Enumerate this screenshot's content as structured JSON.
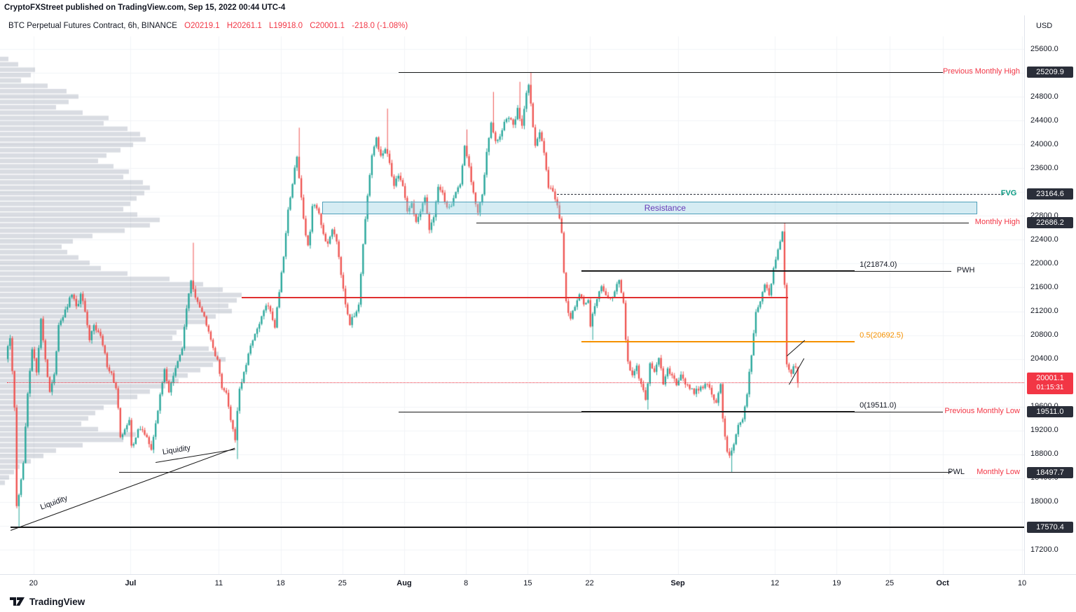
{
  "attribution": "CryptoFXStreet published on TradingView.com, Sep 15, 2022 00:44 UTC-4",
  "header": {
    "symbol": "BTC Perpetual Futures Contract, 6h, BINANCE",
    "ohlc": [
      {
        "k": "O",
        "v": "20219.1"
      },
      {
        "k": "H",
        "v": "20261.1"
      },
      {
        "k": "L",
        "v": "19918.0"
      },
      {
        "k": "C",
        "v": "20001.1"
      }
    ],
    "change": "-218.0 (-1.08%)",
    "change_color": "#f23645"
  },
  "axis": {
    "currency": "USD",
    "price_ticks": [
      "25600.0",
      "25200.0",
      "24800.0",
      "24400.0",
      "24000.0",
      "23600.0",
      "23200.0",
      "22800.0",
      "22400.0",
      "22000.0",
      "21600.0",
      "21200.0",
      "20800.0",
      "20400.0",
      "20000.0",
      "19600.0",
      "19200.0",
      "18800.0",
      "18400.0",
      "18000.0",
      "17600.0",
      "17200.0"
    ],
    "time_ticks": [
      {
        "t": "20",
        "d": 3
      },
      {
        "t": "Jul",
        "d": 14,
        "m": true
      },
      {
        "t": "11",
        "d": 24
      },
      {
        "t": "18",
        "d": 31
      },
      {
        "t": "25",
        "d": 38
      },
      {
        "t": "Aug",
        "d": 45,
        "m": true
      },
      {
        "t": "8",
        "d": 52
      },
      {
        "t": "15",
        "d": 59
      },
      {
        "t": "22",
        "d": 66
      },
      {
        "t": "Sep",
        "d": 76,
        "m": true
      },
      {
        "t": "12",
        "d": 87
      },
      {
        "t": "19",
        "d": 94
      },
      {
        "t": "25",
        "d": 100
      },
      {
        "t": "Oct",
        "d": 106,
        "m": true
      },
      {
        "t": "10",
        "d": 115
      }
    ]
  },
  "footer": {
    "brand": "TradingView"
  },
  "chart_data": {
    "type": "candlestick",
    "title": "BTC Perpetual Futures Contract 6h (BINANCE)",
    "ylim": [
      17200,
      25600
    ],
    "current": {
      "open": 20219.1,
      "high": 20261.1,
      "low": 19918.0,
      "close": 20001.1,
      "change": -218.0,
      "change_pct": -1.08,
      "countdown": "01:15:31"
    },
    "colors": {
      "up": "#26a69a",
      "down": "#ef5350",
      "accent_red": "#f23645",
      "accent_green": "#089981",
      "orange": "#f59100",
      "purple": "#673ab7",
      "badge_bg": "#2a2e39"
    },
    "price_path": [
      [
        0,
        20400
      ],
      [
        0.5,
        20750
      ],
      [
        1,
        19600
      ],
      [
        1.25,
        17950
      ],
      [
        1.6,
        18150
      ],
      [
        2,
        18650
      ],
      [
        2.5,
        19800
      ],
      [
        3,
        20550
      ],
      [
        3.5,
        20200
      ],
      [
        4,
        21050
      ],
      [
        4.5,
        20400
      ],
      [
        5,
        19850
      ],
      [
        5.5,
        20100
      ],
      [
        6,
        21000
      ],
      [
        6.8,
        21200
      ],
      [
        7.5,
        21500
      ],
      [
        8,
        21250
      ],
      [
        8.6,
        21500
      ],
      [
        9,
        21150
      ],
      [
        9.5,
        20700
      ],
      [
        10,
        21000
      ],
      [
        10.8,
        20750
      ],
      [
        11.5,
        20300
      ],
      [
        12,
        20150
      ],
      [
        12.6,
        19850
      ],
      [
        13,
        19050
      ],
      [
        13.5,
        19250
      ],
      [
        14,
        19350
      ],
      [
        14.3,
        18850
      ],
      [
        15,
        19250
      ],
      [
        16,
        19100
      ],
      [
        16.5,
        18850
      ],
      [
        17,
        19350
      ],
      [
        17.6,
        19850
      ],
      [
        18,
        20250
      ],
      [
        18.5,
        19850
      ],
      [
        19,
        20100
      ],
      [
        19.6,
        20400
      ],
      [
        20,
        20600
      ],
      [
        20.5,
        21250
      ],
      [
        21,
        21700
      ],
      [
        21.4,
        21500
      ],
      [
        22,
        21300
      ],
      [
        22.5,
        21100
      ],
      [
        23,
        20900
      ],
      [
        23.5,
        20600
      ],
      [
        24,
        20350
      ],
      [
        24.5,
        19950
      ],
      [
        25,
        19800
      ],
      [
        25.5,
        19400
      ],
      [
        26,
        19050
      ],
      [
        26.4,
        19850
      ],
      [
        27,
        20150
      ],
      [
        27.5,
        20450
      ],
      [
        28,
        20750
      ],
      [
        28.6,
        20900
      ],
      [
        29,
        21100
      ],
      [
        29.5,
        21300
      ],
      [
        30,
        21200
      ],
      [
        30.5,
        20950
      ],
      [
        31,
        21550
      ],
      [
        31.5,
        22150
      ],
      [
        32,
        22900
      ],
      [
        32.5,
        23350
      ],
      [
        33,
        23800
      ],
      [
        33.4,
        23200
      ],
      [
        34,
        22500
      ],
      [
        34.3,
        22250
      ],
      [
        34.8,
        23050
      ],
      [
        35.5,
        22800
      ],
      [
        36,
        22500
      ],
      [
        36.5,
        22300
      ],
      [
        37,
        22600
      ],
      [
        37.5,
        22400
      ],
      [
        38,
        21850
      ],
      [
        38.5,
        21350
      ],
      [
        39,
        21000
      ],
      [
        39.6,
        21150
      ],
      [
        40,
        21350
      ],
      [
        40.5,
        22350
      ],
      [
        41,
        23100
      ],
      [
        41.5,
        23800
      ],
      [
        42,
        24100
      ],
      [
        42.4,
        23800
      ],
      [
        43,
        23900
      ],
      [
        43.5,
        23700
      ],
      [
        44,
        23300
      ],
      [
        44.5,
        23500
      ],
      [
        45,
        23300
      ],
      [
        45.5,
        22900
      ],
      [
        46,
        23000
      ],
      [
        46.5,
        22700
      ],
      [
        47,
        22850
      ],
      [
        47.5,
        23100
      ],
      [
        48,
        22600
      ],
      [
        48.5,
        22800
      ],
      [
        49,
        23300
      ],
      [
        49.5,
        23150
      ],
      [
        50,
        22950
      ],
      [
        50.5,
        23000
      ],
      [
        51,
        23200
      ],
      [
        51.5,
        23350
      ],
      [
        52,
        23950
      ],
      [
        52.4,
        23700
      ],
      [
        53,
        23150
      ],
      [
        53.5,
        22850
      ],
      [
        54,
        23150
      ],
      [
        54.5,
        23900
      ],
      [
        55,
        24400
      ],
      [
        55.4,
        24050
      ],
      [
        56,
        24100
      ],
      [
        56.5,
        24400
      ],
      [
        57,
        24450
      ],
      [
        57.5,
        24300
      ],
      [
        58,
        24600
      ],
      [
        58.5,
        24300
      ],
      [
        59,
        24900
      ],
      [
        59.3,
        25050
      ],
      [
        59.8,
        24200
      ],
      [
        60,
        23950
      ],
      [
        60.5,
        24200
      ],
      [
        61,
        23900
      ],
      [
        61.5,
        23300
      ],
      [
        62,
        23200
      ],
      [
        62.5,
        23000
      ],
      [
        63,
        22550
      ],
      [
        63.3,
        21700
      ],
      [
        63.6,
        21150
      ],
      [
        64,
        21100
      ],
      [
        64.5,
        21300
      ],
      [
        65,
        21500
      ],
      [
        65.5,
        21300
      ],
      [
        66,
        21400
      ],
      [
        66.3,
        20900
      ],
      [
        66.6,
        21250
      ],
      [
        67,
        21400
      ],
      [
        67.5,
        21600
      ],
      [
        68,
        21500
      ],
      [
        68.5,
        21400
      ],
      [
        69,
        21550
      ],
      [
        69.5,
        21750
      ],
      [
        70,
        21300
      ],
      [
        70.4,
        20400
      ],
      [
        71,
        20100
      ],
      [
        71.5,
        20250
      ],
      [
        72,
        19950
      ],
      [
        72.5,
        19750
      ],
      [
        73,
        20300
      ],
      [
        73.5,
        20200
      ],
      [
        74,
        20400
      ],
      [
        74.5,
        20000
      ],
      [
        75,
        20200
      ],
      [
        75.5,
        20100
      ],
      [
        76,
        20000
      ],
      [
        76.5,
        20150
      ],
      [
        77,
        20000
      ],
      [
        77.5,
        19900
      ],
      [
        78,
        19850
      ],
      [
        78.5,
        19900
      ],
      [
        79,
        19950
      ],
      [
        79.5,
        20000
      ],
      [
        80,
        19800
      ],
      [
        80.5,
        19650
      ],
      [
        81,
        19950
      ],
      [
        81.3,
        19300
      ],
      [
        81.7,
        18900
      ],
      [
        82,
        18750
      ],
      [
        82.5,
        19000
      ],
      [
        83,
        19300
      ],
      [
        83.5,
        19350
      ],
      [
        84,
        19800
      ],
      [
        84.5,
        20500
      ],
      [
        85,
        21200
      ],
      [
        85.5,
        21400
      ],
      [
        86,
        21650
      ],
      [
        86.5,
        21500
      ],
      [
        87,
        21900
      ],
      [
        87.5,
        22250
      ],
      [
        88,
        22500
      ],
      [
        88.2,
        22100
      ],
      [
        88.4,
        20400
      ],
      [
        88.6,
        20300
      ],
      [
        89,
        20150
      ],
      [
        89.4,
        20400
      ],
      [
        89.6,
        20050
      ],
      [
        90,
        20001.1
      ]
    ],
    "wick_events": [
      {
        "day": 1.25,
        "side": "low",
        "price": 17570.4
      },
      {
        "day": 21,
        "side": "high",
        "price": 22350
      },
      {
        "day": 26,
        "side": "low",
        "price": 18720
      },
      {
        "day": 33,
        "side": "high",
        "price": 24280
      },
      {
        "day": 42.9,
        "side": "high",
        "price": 24600
      },
      {
        "day": 52,
        "side": "high",
        "price": 24250
      },
      {
        "day": 55,
        "side": "high",
        "price": 24880
      },
      {
        "day": 58,
        "side": "high",
        "price": 25050
      },
      {
        "day": 59.25,
        "side": "high",
        "price": 25209.9
      },
      {
        "day": 66.25,
        "side": "low",
        "price": 20720
      },
      {
        "day": 70.5,
        "side": "low",
        "price": 20220
      },
      {
        "day": 72.5,
        "side": "low",
        "price": 19550
      },
      {
        "day": 82,
        "side": "low",
        "price": 18497.7
      },
      {
        "day": 88,
        "side": "high",
        "price": 22686.2
      },
      {
        "day": 89.75,
        "side": "low",
        "price": 19918
      }
    ],
    "volume_profile": {
      "top_price": 25470,
      "step": 90,
      "bar_color": "rgba(130,138,158,0.30)",
      "widths": [
        12,
        26,
        50,
        44,
        30,
        68,
        95,
        112,
        98,
        80,
        118,
        155,
        148,
        182,
        200,
        208,
        190,
        172,
        152,
        140,
        162,
        184,
        176,
        204,
        214,
        206,
        195,
        186,
        176,
        196,
        228,
        214,
        178,
        132,
        104,
        88,
        96,
        112,
        128,
        144,
        182,
        242,
        290,
        318,
        345,
        338,
        326,
        331,
        308,
        295,
        266,
        252,
        246,
        260,
        298,
        312,
        322,
        304,
        286,
        268,
        255,
        236,
        214,
        196,
        170,
        148,
        136,
        126,
        116,
        140,
        194,
        176,
        118,
        80,
        62,
        44,
        28,
        20,
        13,
        7
      ]
    },
    "levels": {
      "previous_monthly_high": 25209.9,
      "fvg": 23164.6,
      "monthly_high": 22686.2,
      "fib_1": 21874.0,
      "mid_red_line": 21430,
      "fib_05": 20692.5,
      "current_price": 20001.1,
      "fib_0_previous_monthly_low": 19511.0,
      "monthly_low_pwl": 18497.7,
      "support": 17570.4
    },
    "horizontal_lines": [
      {
        "name": "previous-monthly-high-line",
        "price": 25209.9,
        "d1": 44.4,
        "d2": 106,
        "color": "#1a1a1a",
        "w": 1
      },
      {
        "name": "fvg-line",
        "price": 23164.6,
        "d1": 62.3,
        "d2": 112.9,
        "color": "#2a2e39",
        "w": 1,
        "style": "dashed"
      },
      {
        "name": "monthly-high-line",
        "price": 22686.2,
        "d1": 53.2,
        "d2": 109,
        "color": "#1a1a1a",
        "w": 1
      },
      {
        "name": "fib-1-line",
        "price": 21874,
        "d1": 65.1,
        "d2": 96,
        "color": "#1a1a1a",
        "w": 2
      },
      {
        "name": "pwh-line",
        "price": 21874,
        "d1": 96,
        "d2": 107,
        "color": "#1a1a1a",
        "w": 1
      },
      {
        "name": "mid-red-line",
        "price": 21430,
        "d1": 26.6,
        "d2": 88.5,
        "color": "#e03030",
        "w": 2
      },
      {
        "name": "fib-05-line",
        "price": 20692.5,
        "d1": 65.1,
        "d2": 96,
        "color": "#f59100",
        "w": 2
      },
      {
        "name": "current-price-line",
        "price": 20001.1,
        "d1": 0,
        "d2": 115.2,
        "color": "#f23645",
        "w": 1,
        "style": "dotted"
      },
      {
        "name": "fib-0-line",
        "price": 19511,
        "d1": 65.1,
        "d2": 96,
        "color": "#1a1a1a",
        "w": 2
      },
      {
        "name": "previous-monthly-low-line",
        "price": 19511,
        "d1": 44.4,
        "d2": 106,
        "color": "#1a1a1a",
        "w": 1
      },
      {
        "name": "monthly-low-line",
        "price": 18497.7,
        "d1": 12.7,
        "d2": 107,
        "color": "#1a1a1a",
        "w": 1
      },
      {
        "name": "support-17570-line",
        "price": 17570.4,
        "d1": 0.4,
        "d2": 115.2,
        "color": "#1a1a1a",
        "w": 2
      }
    ],
    "trend_lines": [
      {
        "name": "liquidity-line-1",
        "d1": 0.4,
        "p1": 17530,
        "d2": 25.8,
        "p2": 18910,
        "color": "#1a1a1a"
      },
      {
        "name": "liquidity-line-2",
        "d1": 16.8,
        "p1": 18670,
        "d2": 25.8,
        "p2": 18890,
        "color": "#1a1a1a"
      },
      {
        "name": "micro-line-1",
        "d1": 88.3,
        "p1": 20450,
        "d2": 90.3,
        "p2": 20710,
        "color": "#1a1a1a"
      },
      {
        "name": "micro-line-2",
        "d1": 88.6,
        "p1": 19970,
        "d2": 90.3,
        "p2": 20410,
        "color": "#1a1a1a"
      }
    ],
    "band": {
      "name": "resistance-zone",
      "p_top": 23040,
      "p_bottom": 22830,
      "d1": 35.7,
      "d2": 109.9,
      "fill": "rgba(150,208,224,0.40)",
      "border": "#4f9fba",
      "label": "Resistance",
      "label_color": "#673ab7",
      "label_day": 72.2
    },
    "text_labels": [
      {
        "name": "fib-1-label",
        "text": "1(21874.0)",
        "day": 96.6,
        "price": 21874,
        "color": "#131722",
        "dy": -15
      },
      {
        "name": "fib-05-label",
        "text": "0.5(20692.5)",
        "day": 96.6,
        "price": 20692.5,
        "color": "#f59100",
        "dy": -15
      },
      {
        "name": "fib-0-label",
        "text": "0(19511.0)",
        "day": 96.6,
        "price": 19511,
        "color": "#131722",
        "dy": -15
      },
      {
        "name": "pwh-label",
        "text": "PWH",
        "day": 107.6,
        "price": 21874,
        "color": "#131722",
        "dy": -7
      },
      {
        "name": "pwl-label",
        "text": "PWL",
        "day": 106.6,
        "price": 18497.7,
        "color": "#131722",
        "dy": -7
      },
      {
        "name": "fvg-label",
        "text": "FVG",
        "day": 112.6,
        "price": 23164.6,
        "color": "#089981",
        "dy": -7,
        "bold": true
      },
      {
        "name": "liquidity-label-1",
        "text": "Liquidity",
        "day": 3.8,
        "price": 17980,
        "color": "#131722",
        "rot": -20
      },
      {
        "name": "liquidity-label-2",
        "text": "Liquidity",
        "day": 17.6,
        "price": 18900,
        "color": "#131722",
        "rot": -9
      }
    ],
    "right_labels": [
      {
        "name": "previous-monthly-high-label",
        "text": "Previous Monthly High",
        "price": 25209.9,
        "color": "#f23645"
      },
      {
        "name": "monthly-high-label",
        "text": "Monthly High",
        "price": 22686.2,
        "color": "#f23645"
      },
      {
        "name": "previous-monthly-low-label",
        "text": "Previous Monthly Low",
        "price": 19511.0,
        "color": "#f23645"
      },
      {
        "name": "monthly-low-label",
        "text": "Monthly Low",
        "price": 18497.7,
        "color": "#f23645"
      }
    ],
    "axis_badges": [
      {
        "text": "25209.9",
        "price": 25209.9
      },
      {
        "text": "23164.6",
        "price": 23164.6
      },
      {
        "text": "22686.2",
        "price": 22686.2
      },
      {
        "text": "19511.0",
        "price": 19511.0
      },
      {
        "text": "18497.7",
        "price": 18497.7
      },
      {
        "text": "17570.4",
        "price": 17570.4
      }
    ],
    "current_badge": {
      "price_text": "20001.1",
      "countdown": "01:15:31",
      "price": 20001.1,
      "bg": "#f23645"
    }
  }
}
